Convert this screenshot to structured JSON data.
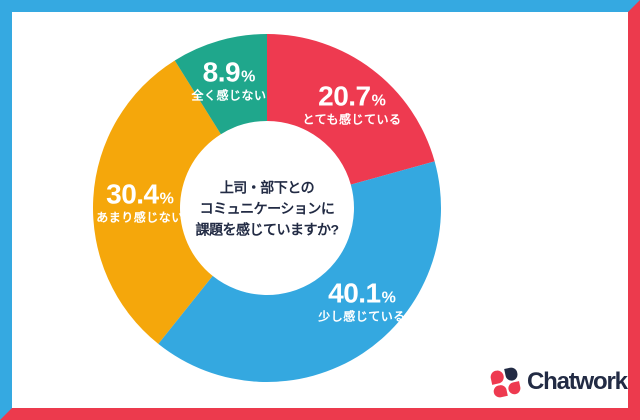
{
  "frame": {
    "top_left_color": "#35A9E1",
    "bottom_right_color": "#EC3A4D"
  },
  "chart_data": {
    "type": "pie",
    "donut": true,
    "start_angle_deg": 0,
    "direction": "clockwise",
    "title_lines": [
      "上司・部下との",
      "コミュニケーションに",
      "課題を感じていますか?"
    ],
    "segments": [
      {
        "label": "とても感じている",
        "value": 20.7,
        "value_label": "20.7",
        "suffix": "%",
        "color": "#EE3A50"
      },
      {
        "label": "少し感じている",
        "value": 40.1,
        "value_label": "40.1",
        "suffix": "%",
        "color": "#34A8E0"
      },
      {
        "label": "あまり感じない",
        "value": 30.4,
        "value_label": "30.4",
        "suffix": "%",
        "color": "#F5A70B"
      },
      {
        "label": "全く感じない",
        "value": 8.9,
        "value_label": "8.9",
        "suffix": "%",
        "color": "#1FA78C"
      }
    ],
    "segment_label_color": "#FFFFFF",
    "center_text_color": "#222B44",
    "legend_position": "on-slices"
  },
  "logo": {
    "wordmark": "Chatwork",
    "icon_red": "#EE3A50",
    "icon_navy": "#222B44",
    "text_color": "#222B44"
  }
}
